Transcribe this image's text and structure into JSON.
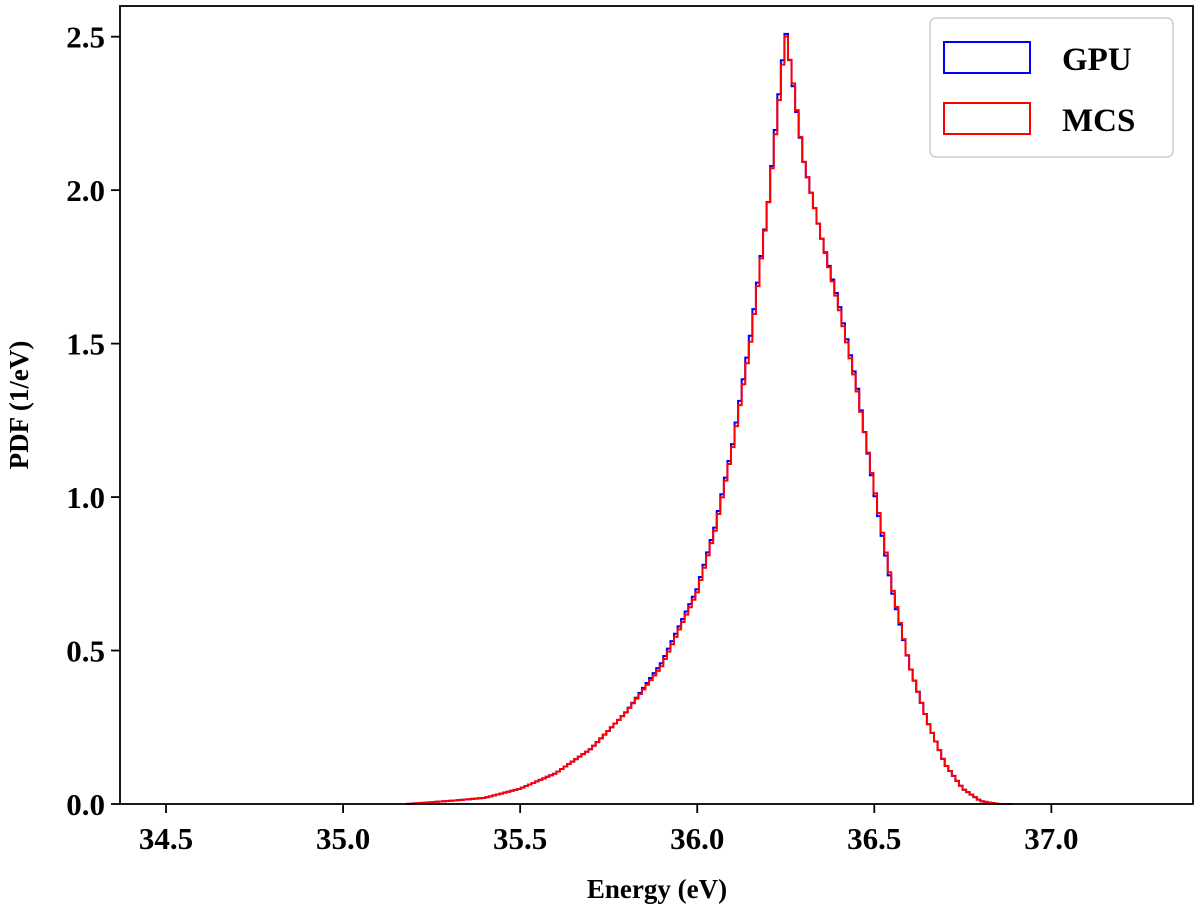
{
  "chart_data": {
    "type": "line",
    "style": "step-histogram",
    "title": "",
    "xlabel": "Energy (eV)",
    "ylabel": "PDF (1/eV)",
    "xlim": [
      34.37,
      37.4
    ],
    "ylim": [
      0,
      2.6
    ],
    "xticks": [
      34.5,
      35.0,
      35.5,
      36.0,
      36.5,
      37.0
    ],
    "xtick_labels": [
      "34.5",
      "35.0",
      "35.5",
      "36.0",
      "36.5",
      "37.0"
    ],
    "yticks": [
      0.0,
      0.5,
      1.0,
      1.5,
      2.0,
      2.5
    ],
    "ytick_labels": [
      "0.0",
      "0.5",
      "1.0",
      "1.5",
      "2.0",
      "2.5"
    ],
    "grid": false,
    "legend_position": "top-right",
    "series": [
      {
        "name": "GPU",
        "color": "#0000ff",
        "x": [
          35.18,
          35.3,
          35.4,
          35.5,
          35.6,
          35.7,
          35.8,
          35.9,
          36.0,
          36.05,
          36.1,
          36.15,
          36.2,
          36.23,
          36.25,
          36.27,
          36.3,
          36.35,
          36.4,
          36.45,
          36.5,
          36.55,
          36.6,
          36.65,
          36.7,
          36.75,
          36.8,
          36.85,
          36.89
        ],
        "y": [
          0.0,
          0.01,
          0.02,
          0.05,
          0.1,
          0.18,
          0.3,
          0.46,
          0.7,
          0.9,
          1.17,
          1.52,
          1.95,
          2.3,
          2.52,
          2.35,
          2.1,
          1.85,
          1.63,
          1.37,
          1.02,
          0.7,
          0.45,
          0.27,
          0.13,
          0.05,
          0.01,
          0.0,
          0.0
        ]
      },
      {
        "name": "MCS",
        "color": "#ff0000",
        "x": [
          35.18,
          35.3,
          35.4,
          35.5,
          35.6,
          35.7,
          35.8,
          35.9,
          36.0,
          36.05,
          36.1,
          36.15,
          36.2,
          36.23,
          36.25,
          36.27,
          36.3,
          36.35,
          36.4,
          36.45,
          36.5,
          36.55,
          36.6,
          36.65,
          36.7,
          36.75,
          36.8,
          36.85,
          36.89
        ],
        "y": [
          0.0,
          0.01,
          0.02,
          0.05,
          0.1,
          0.18,
          0.3,
          0.45,
          0.69,
          0.89,
          1.16,
          1.5,
          1.95,
          2.28,
          2.51,
          2.36,
          2.1,
          1.85,
          1.62,
          1.36,
          1.03,
          0.71,
          0.45,
          0.27,
          0.13,
          0.05,
          0.01,
          0.0,
          0.0
        ]
      }
    ]
  }
}
